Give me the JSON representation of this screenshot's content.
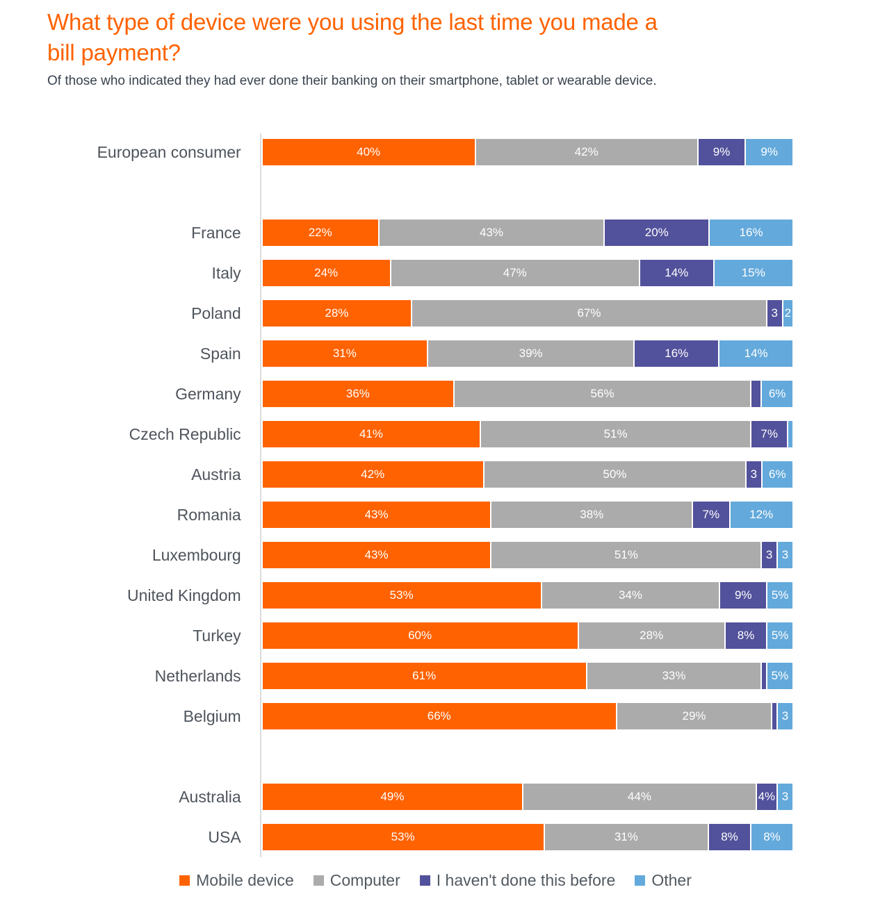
{
  "header": {
    "title_line1": "What type of device were you using the last time you made a",
    "title_line2": "bill payment?",
    "subtitle": "Of those who indicated they had ever done their banking on their smartphone, tablet or wearable device.",
    "title_color": "#FF6200"
  },
  "chart_data": {
    "type": "bar",
    "stacked": true,
    "orientation": "horizontal",
    "xlim": [
      0,
      100
    ],
    "grid": false,
    "legend_position": "bottom",
    "axis_line_color": "#DCDCDC",
    "value_label_color": "#FFFFFF",
    "category_label_color": "#4E545C",
    "series": [
      {
        "name": "Mobile device",
        "color": "#FF6200"
      },
      {
        "name": "Computer",
        "color": "#ABABAB"
      },
      {
        "name": "I haven't done this before",
        "color": "#52519B"
      },
      {
        "name": "Other",
        "color": "#63A9DB"
      }
    ],
    "rows": [
      {
        "label": "European consumer",
        "values": [
          40,
          42,
          9,
          9
        ],
        "display": [
          "40%",
          "42%",
          "9%",
          "9%"
        ],
        "gap_before": false
      },
      {
        "label": "France",
        "values": [
          22,
          43,
          20,
          16
        ],
        "display": [
          "22%",
          "43%",
          "20%",
          "16%"
        ],
        "gap_before": true
      },
      {
        "label": "Italy",
        "values": [
          24,
          47,
          14,
          15
        ],
        "display": [
          "24%",
          "47%",
          "14%",
          "15%"
        ],
        "gap_before": false
      },
      {
        "label": "Poland",
        "values": [
          28,
          67,
          3,
          2
        ],
        "display": [
          "28%",
          "67%",
          "3",
          "2"
        ],
        "gap_before": false
      },
      {
        "label": "Spain",
        "values": [
          31,
          39,
          16,
          14
        ],
        "display": [
          "31%",
          "39%",
          "16%",
          "14%"
        ],
        "gap_before": false
      },
      {
        "label": "Germany",
        "values": [
          36,
          56,
          2,
          6
        ],
        "display": [
          "36%",
          "56%",
          "",
          "6%"
        ],
        "gap_before": false
      },
      {
        "label": "Czech Republic",
        "values": [
          41,
          51,
          7,
          1
        ],
        "display": [
          "41%",
          "51%",
          "7%",
          ""
        ],
        "gap_before": false
      },
      {
        "label": "Austria",
        "values": [
          42,
          50,
          3,
          6
        ],
        "display": [
          "42%",
          "50%",
          "3",
          "6%"
        ],
        "gap_before": false
      },
      {
        "label": "Romania",
        "values": [
          43,
          38,
          7,
          12
        ],
        "display": [
          "43%",
          "38%",
          "7%",
          "12%"
        ],
        "gap_before": false
      },
      {
        "label": "Luxembourg",
        "values": [
          43,
          51,
          3,
          3
        ],
        "display": [
          "43%",
          "51%",
          "3",
          "3"
        ],
        "gap_before": false
      },
      {
        "label": "United Kingdom",
        "values": [
          53,
          34,
          9,
          5
        ],
        "display": [
          "53%",
          "34%",
          "9%",
          "5%"
        ],
        "gap_before": false
      },
      {
        "label": "Turkey",
        "values": [
          60,
          28,
          8,
          5
        ],
        "display": [
          "60%",
          "28%",
          "8%",
          "5%"
        ],
        "gap_before": false
      },
      {
        "label": "Netherlands",
        "values": [
          61,
          33,
          1,
          5
        ],
        "display": [
          "61%",
          "33%",
          "",
          "5%"
        ],
        "gap_before": false
      },
      {
        "label": "Belgium",
        "values": [
          66,
          29,
          1,
          3
        ],
        "display": [
          "66%",
          "29%",
          "",
          "3"
        ],
        "gap_before": false
      },
      {
        "label": "Australia",
        "values": [
          49,
          44,
          4,
          3
        ],
        "display": [
          "49%",
          "44%",
          "4%",
          "3"
        ],
        "gap_before": true
      },
      {
        "label": "USA",
        "values": [
          53,
          31,
          8,
          8
        ],
        "display": [
          "53%",
          "31%",
          "8%",
          "8%"
        ],
        "gap_before": false
      }
    ]
  }
}
